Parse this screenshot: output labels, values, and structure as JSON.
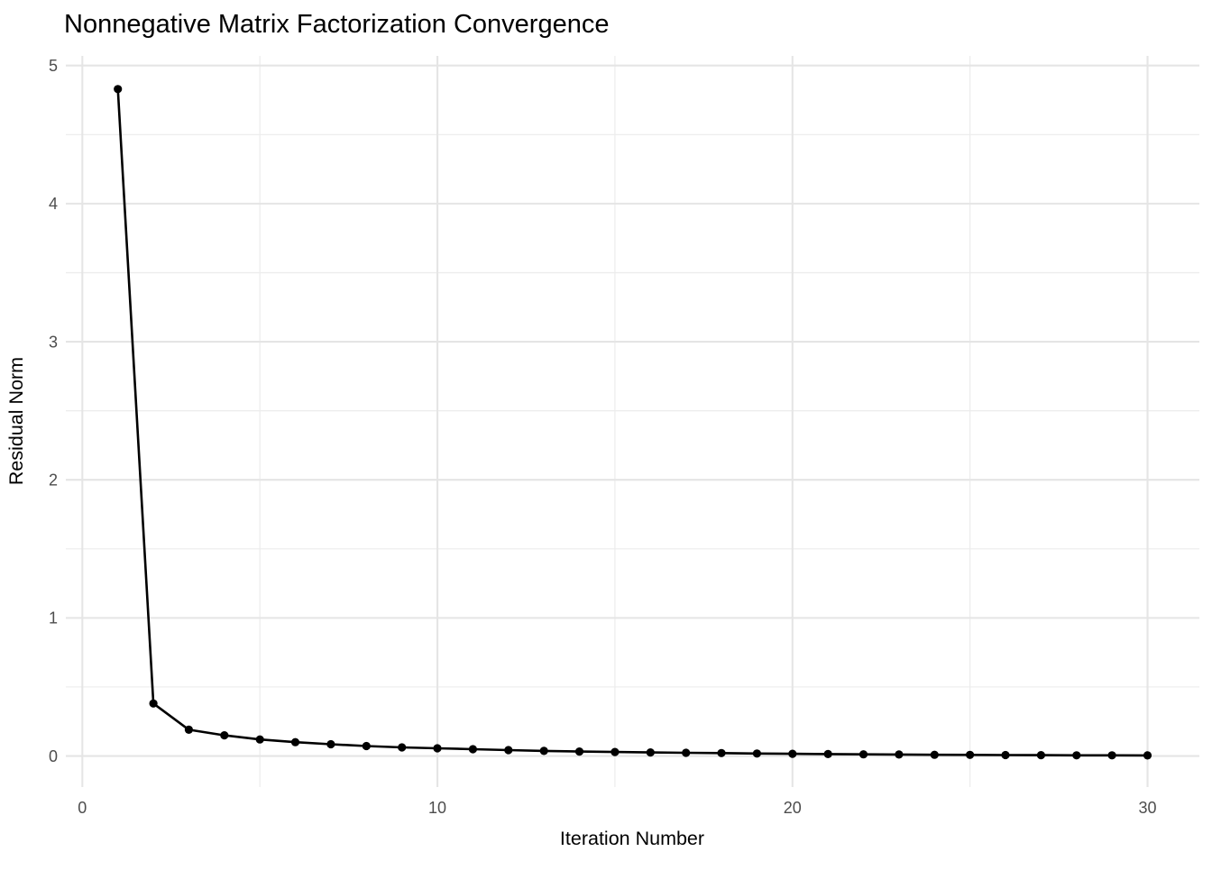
{
  "chart_data": {
    "type": "line",
    "title": "Nonnegative Matrix Factorization Convergence",
    "xlabel": "Iteration Number",
    "ylabel": "Residual Norm",
    "x": [
      1,
      2,
      3,
      4,
      5,
      6,
      7,
      8,
      9,
      10,
      11,
      12,
      13,
      14,
      15,
      16,
      17,
      18,
      19,
      20,
      21,
      22,
      23,
      24,
      25,
      26,
      27,
      28,
      29,
      30
    ],
    "y": [
      4.83,
      0.38,
      0.19,
      0.15,
      0.12,
      0.1,
      0.085,
      0.072,
      0.062,
      0.056,
      0.049,
      0.043,
      0.037,
      0.032,
      0.029,
      0.026,
      0.023,
      0.021,
      0.018,
      0.016,
      0.014,
      0.012,
      0.011,
      0.009,
      0.008,
      0.007,
      0.006,
      0.005,
      0.005,
      0.004
    ],
    "x_ticks": [
      0,
      10,
      20,
      30
    ],
    "y_ticks": [
      0,
      1,
      2,
      3,
      4,
      5
    ],
    "x_minor": [
      5,
      15,
      25
    ],
    "y_minor": [
      0.5,
      1.5,
      2.5,
      3.5,
      4.5
    ],
    "xlim": [
      -0.465,
      31.46
    ],
    "ylim": [
      -0.225,
      5.07
    ],
    "grid": "on",
    "legend": "none",
    "colors": {
      "line": "#000000",
      "point": "#000000",
      "grid_major": "#e5e5e5",
      "grid_minor": "#ececec",
      "tick_label": "#4d4d4d",
      "title": "#000000",
      "background": "#ffffff"
    }
  }
}
